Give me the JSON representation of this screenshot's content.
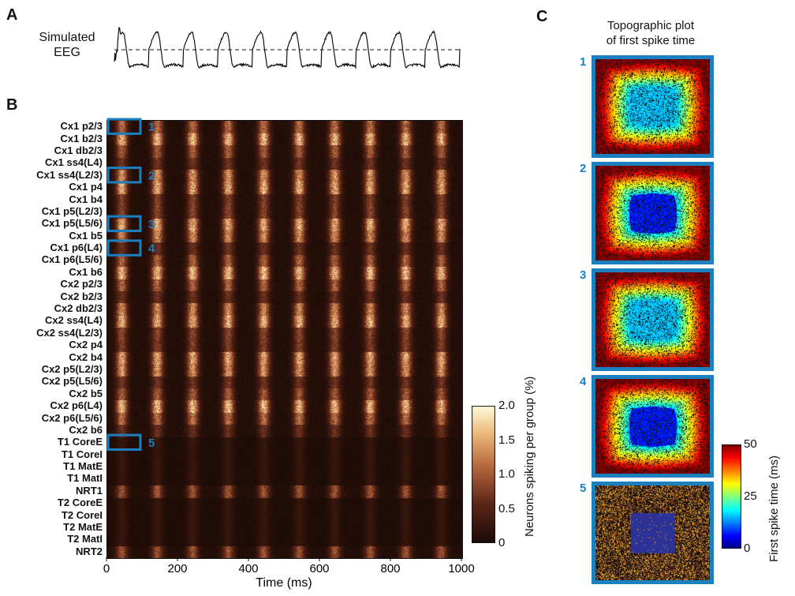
{
  "colors": {
    "highlight_blue": "#1b7fc0",
    "heatmap_low": "#1a0a05",
    "heatmap_high": "#fffde0"
  },
  "panel_a": {
    "letter": "A",
    "label_line1": "Simulated",
    "label_line2": "EEG"
  },
  "panel_b": {
    "letter": "B"
  },
  "panel_c": {
    "letter": "C",
    "title_line1": "Topographic plot",
    "title_line2": "of first spike time",
    "tiles": [
      "1",
      "2",
      "3",
      "4",
      "5"
    ],
    "colorbar": {
      "ticks": [
        "50",
        "25",
        "0"
      ],
      "title": "First spike time (ms)",
      "range": [
        0,
        50
      ]
    }
  },
  "chart_data": [
    {
      "type": "line",
      "panel": "A",
      "title": "Simulated EEG",
      "xlim": [
        0,
        1000
      ],
      "cycles": 10,
      "period_ms": 100,
      "grid": false
    },
    {
      "type": "heatmap",
      "panel": "B",
      "xlabel": "Time (ms)",
      "xlim": [
        0,
        1000
      ],
      "xticks": [
        "0",
        "200",
        "400",
        "600",
        "800",
        "1000"
      ],
      "rows": [
        "Cx1 p2/3",
        "Cx1 b2/3",
        "Cx1 db2/3",
        "Cx1 ss4(L4)",
        "Cx1 ss4(L2/3)",
        "Cx1 p4",
        "Cx1 b4",
        "Cx1 p5(L2/3)",
        "Cx1 p5(L5/6)",
        "Cx1 b5",
        "Cx1 p6(L4)",
        "Cx1 p6(L5/6)",
        "Cx1 b6",
        "Cx2 p2/3",
        "Cx2 b2/3",
        "Cx2 db2/3",
        "Cx2 ss4(L4)",
        "Cx2 ss4(L2/3)",
        "Cx2 p4",
        "Cx2 b4",
        "Cx2 p5(L2/3)",
        "Cx2 p5(L5/6)",
        "Cx2 b5",
        "Cx2 p6(L4)",
        "Cx2 p6(L5/6)",
        "Cx2 b6",
        "T1 CoreE",
        "T1 CoreI",
        "T1 MatE",
        "T1 MatI",
        "NRT1",
        "T2 CoreE",
        "T2 CoreI",
        "T2 MatE",
        "T2 MatI",
        "NRT2"
      ],
      "highlighted_rows": [
        {
          "id": "1",
          "row": "Cx1 p2/3"
        },
        {
          "id": "2",
          "row": "Cx1 ss4(L2/3)"
        },
        {
          "id": "3",
          "row": "Cx1 p5(L5/6)"
        },
        {
          "id": "4",
          "row": "Cx1 p6(L4)"
        },
        {
          "id": "5",
          "row": "T1 CoreE"
        }
      ],
      "highlight_window_ms": [
        0,
        100
      ],
      "oscillation_period_ms": 100,
      "colorbar": {
        "title": "Neurons spiking per group (%)",
        "ticks": [
          "2.0",
          "1.5",
          "1.0",
          "0.5",
          "0"
        ],
        "range": [
          0,
          2.0
        ]
      }
    }
  ]
}
